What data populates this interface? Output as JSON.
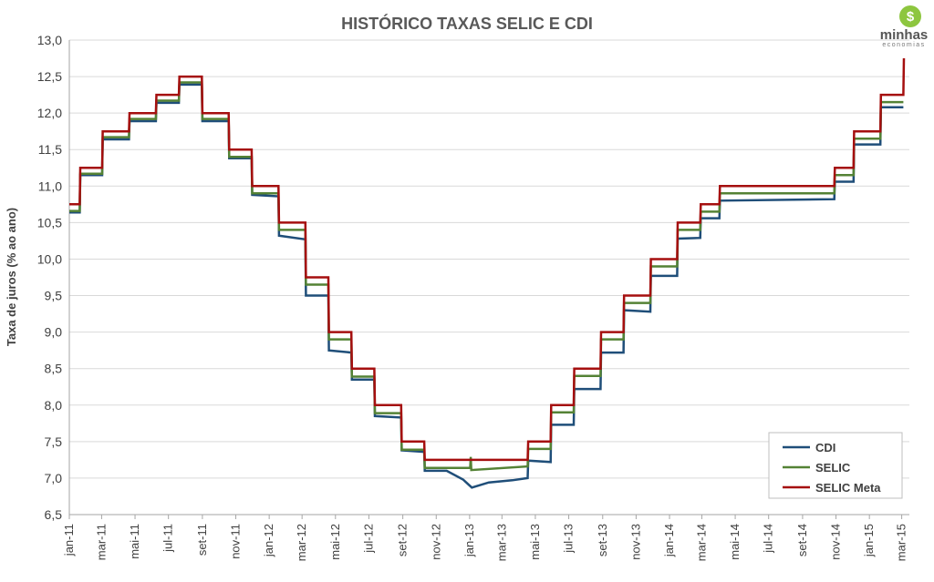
{
  "brand": {
    "symbol": "$",
    "name": "minhas",
    "tagline": "economias"
  },
  "colors": {
    "cdi": "#1f4e79",
    "selic": "#548235",
    "selic_meta": "#a50f0f",
    "grid": "#d9d9d9"
  },
  "chart_data": {
    "type": "line",
    "title": "HISTÓRICO TAXAS SELIC E CDI",
    "xlabel": "",
    "ylabel": "Taxa de juros (% ao ano)",
    "ylim": [
      6.5,
      13.0
    ],
    "yticks": [
      "6,5",
      "7,0",
      "7,5",
      "8,0",
      "8,5",
      "9,0",
      "9,5",
      "10,0",
      "10,5",
      "11,0",
      "11,5",
      "12,0",
      "12,5",
      "13,0"
    ],
    "x_range": [
      "2011-01-01",
      "2015-03-15"
    ],
    "xticks": [
      {
        "date": "2011-01-01",
        "label": "jan-11"
      },
      {
        "date": "2011-03-01",
        "label": "mar-11"
      },
      {
        "date": "2011-05-01",
        "label": "mai-11"
      },
      {
        "date": "2011-07-01",
        "label": "jul-11"
      },
      {
        "date": "2011-09-01",
        "label": "set-11"
      },
      {
        "date": "2011-11-01",
        "label": "nov-11"
      },
      {
        "date": "2012-01-01",
        "label": "jan-12"
      },
      {
        "date": "2012-03-01",
        "label": "mar-12"
      },
      {
        "date": "2012-05-01",
        "label": "mai-12"
      },
      {
        "date": "2012-07-01",
        "label": "jul-12"
      },
      {
        "date": "2012-09-01",
        "label": "set-12"
      },
      {
        "date": "2012-11-01",
        "label": "nov-12"
      },
      {
        "date": "2013-01-01",
        "label": "jan-13"
      },
      {
        "date": "2013-03-01",
        "label": "mar-13"
      },
      {
        "date": "2013-05-01",
        "label": "mai-13"
      },
      {
        "date": "2013-07-01",
        "label": "jul-13"
      },
      {
        "date": "2013-09-01",
        "label": "set-13"
      },
      {
        "date": "2013-11-01",
        "label": "nov-13"
      },
      {
        "date": "2014-01-01",
        "label": "jan-14"
      },
      {
        "date": "2014-03-01",
        "label": "mar-14"
      },
      {
        "date": "2014-05-01",
        "label": "mai-14"
      },
      {
        "date": "2014-07-01",
        "label": "jul-14"
      },
      {
        "date": "2014-09-01",
        "label": "set-14"
      },
      {
        "date": "2014-11-01",
        "label": "nov-14"
      },
      {
        "date": "2015-01-01",
        "label": "jan-15"
      },
      {
        "date": "2015-03-01",
        "label": "mar-15"
      }
    ],
    "grid": true,
    "legend_position": "bottom-right",
    "series": [
      {
        "name": "CDI",
        "color": "#1f4e79",
        "points": [
          [
            "2011-01-01",
            10.64
          ],
          [
            "2011-01-20",
            10.64
          ],
          [
            "2011-01-21",
            11.15
          ],
          [
            "2011-03-02",
            11.15
          ],
          [
            "2011-03-03",
            11.64
          ],
          [
            "2011-04-20",
            11.64
          ],
          [
            "2011-04-21",
            11.89
          ],
          [
            "2011-06-08",
            11.89
          ],
          [
            "2011-06-09",
            12.14
          ],
          [
            "2011-07-20",
            12.14
          ],
          [
            "2011-07-21",
            12.39
          ],
          [
            "2011-08-31",
            12.39
          ],
          [
            "2011-09-01",
            11.89
          ],
          [
            "2011-10-19",
            11.89
          ],
          [
            "2011-10-20",
            11.38
          ],
          [
            "2011-11-30",
            11.38
          ],
          [
            "2011-12-01",
            10.88
          ],
          [
            "2012-01-18",
            10.86
          ],
          [
            "2012-01-19",
            10.32
          ],
          [
            "2012-03-07",
            10.27
          ],
          [
            "2012-03-08",
            9.5
          ],
          [
            "2012-04-18",
            9.5
          ],
          [
            "2012-04-19",
            8.75
          ],
          [
            "2012-05-30",
            8.72
          ],
          [
            "2012-05-31",
            8.35
          ],
          [
            "2012-07-11",
            8.35
          ],
          [
            "2012-07-12",
            7.85
          ],
          [
            "2012-08-29",
            7.83
          ],
          [
            "2012-08-30",
            7.38
          ],
          [
            "2012-10-10",
            7.36
          ],
          [
            "2012-10-11",
            7.1
          ],
          [
            "2012-11-20",
            7.1
          ],
          [
            "2012-12-20",
            6.98
          ],
          [
            "2013-01-05",
            6.87
          ],
          [
            "2013-02-05",
            6.94
          ],
          [
            "2013-03-20",
            6.97
          ],
          [
            "2013-04-17",
            7.0
          ],
          [
            "2013-04-18",
            7.24
          ],
          [
            "2013-05-29",
            7.22
          ],
          [
            "2013-05-30",
            7.73
          ],
          [
            "2013-07-10",
            7.73
          ],
          [
            "2013-07-11",
            8.22
          ],
          [
            "2013-08-28",
            8.22
          ],
          [
            "2013-08-29",
            8.72
          ],
          [
            "2013-10-09",
            8.72
          ],
          [
            "2013-10-10",
            9.3
          ],
          [
            "2013-11-27",
            9.28
          ],
          [
            "2013-11-28",
            9.77
          ],
          [
            "2014-01-15",
            9.77
          ],
          [
            "2014-01-16",
            10.28
          ],
          [
            "2014-02-26",
            10.29
          ],
          [
            "2014-02-27",
            10.56
          ],
          [
            "2014-04-02",
            10.56
          ],
          [
            "2014-04-03",
            10.8
          ],
          [
            "2014-10-29",
            10.82
          ],
          [
            "2014-10-30",
            11.06
          ],
          [
            "2014-12-03",
            11.06
          ],
          [
            "2014-12-04",
            11.57
          ],
          [
            "2015-01-21",
            11.57
          ],
          [
            "2015-01-22",
            12.08
          ],
          [
            "2015-03-04",
            12.08
          ]
        ]
      },
      {
        "name": "SELIC",
        "color": "#548235",
        "points": [
          [
            "2011-01-01",
            10.66
          ],
          [
            "2011-01-20",
            10.66
          ],
          [
            "2011-01-21",
            11.17
          ],
          [
            "2011-03-02",
            11.17
          ],
          [
            "2011-03-03",
            11.67
          ],
          [
            "2011-04-20",
            11.67
          ],
          [
            "2011-04-21",
            11.92
          ],
          [
            "2011-06-08",
            11.92
          ],
          [
            "2011-06-09",
            12.17
          ],
          [
            "2011-07-20",
            12.17
          ],
          [
            "2011-07-21",
            12.42
          ],
          [
            "2011-08-31",
            12.42
          ],
          [
            "2011-09-01",
            11.92
          ],
          [
            "2011-10-19",
            11.92
          ],
          [
            "2011-10-20",
            11.4
          ],
          [
            "2011-11-30",
            11.4
          ],
          [
            "2011-12-01",
            10.9
          ],
          [
            "2012-01-18",
            10.9
          ],
          [
            "2012-01-19",
            10.4
          ],
          [
            "2012-03-07",
            10.4
          ],
          [
            "2012-03-08",
            9.65
          ],
          [
            "2012-04-18",
            9.65
          ],
          [
            "2012-04-19",
            8.9
          ],
          [
            "2012-05-30",
            8.9
          ],
          [
            "2012-05-31",
            8.39
          ],
          [
            "2012-07-11",
            8.39
          ],
          [
            "2012-07-12",
            7.89
          ],
          [
            "2012-08-29",
            7.89
          ],
          [
            "2012-08-30",
            7.39
          ],
          [
            "2012-10-10",
            7.39
          ],
          [
            "2012-10-11",
            7.14
          ],
          [
            "2013-01-02",
            7.14
          ],
          [
            "2013-01-03",
            7.29
          ],
          [
            "2013-01-04",
            7.11
          ],
          [
            "2013-04-17",
            7.16
          ],
          [
            "2013-04-18",
            7.4
          ],
          [
            "2013-05-29",
            7.4
          ],
          [
            "2013-05-30",
            7.9
          ],
          [
            "2013-07-10",
            7.9
          ],
          [
            "2013-07-11",
            8.4
          ],
          [
            "2013-08-28",
            8.4
          ],
          [
            "2013-08-29",
            8.9
          ],
          [
            "2013-10-09",
            8.9
          ],
          [
            "2013-10-10",
            9.4
          ],
          [
            "2013-11-27",
            9.4
          ],
          [
            "2013-11-28",
            9.9
          ],
          [
            "2014-01-15",
            9.9
          ],
          [
            "2014-01-16",
            10.4
          ],
          [
            "2014-02-26",
            10.4
          ],
          [
            "2014-02-27",
            10.65
          ],
          [
            "2014-04-02",
            10.65
          ],
          [
            "2014-04-03",
            10.9
          ],
          [
            "2014-10-29",
            10.9
          ],
          [
            "2014-10-30",
            11.15
          ],
          [
            "2014-12-03",
            11.15
          ],
          [
            "2014-12-04",
            11.65
          ],
          [
            "2015-01-21",
            11.65
          ],
          [
            "2015-01-22",
            12.15
          ],
          [
            "2015-03-04",
            12.15
          ]
        ]
      },
      {
        "name": "SELIC Meta",
        "color": "#a50f0f",
        "points": [
          [
            "2011-01-01",
            10.75
          ],
          [
            "2011-01-20",
            10.75
          ],
          [
            "2011-01-21",
            11.25
          ],
          [
            "2011-03-02",
            11.25
          ],
          [
            "2011-03-03",
            11.75
          ],
          [
            "2011-04-20",
            11.75
          ],
          [
            "2011-04-21",
            12.0
          ],
          [
            "2011-06-08",
            12.0
          ],
          [
            "2011-06-09",
            12.25
          ],
          [
            "2011-07-20",
            12.25
          ],
          [
            "2011-07-21",
            12.5
          ],
          [
            "2011-08-31",
            12.5
          ],
          [
            "2011-09-01",
            12.0
          ],
          [
            "2011-10-19",
            12.0
          ],
          [
            "2011-10-20",
            11.5
          ],
          [
            "2011-11-30",
            11.5
          ],
          [
            "2011-12-01",
            11.0
          ],
          [
            "2012-01-18",
            11.0
          ],
          [
            "2012-01-19",
            10.5
          ],
          [
            "2012-03-07",
            10.5
          ],
          [
            "2012-03-08",
            9.75
          ],
          [
            "2012-04-18",
            9.75
          ],
          [
            "2012-04-19",
            9.0
          ],
          [
            "2012-05-30",
            9.0
          ],
          [
            "2012-05-31",
            8.5
          ],
          [
            "2012-07-11",
            8.5
          ],
          [
            "2012-07-12",
            8.0
          ],
          [
            "2012-08-29",
            8.0
          ],
          [
            "2012-08-30",
            7.5
          ],
          [
            "2012-10-10",
            7.5
          ],
          [
            "2012-10-11",
            7.25
          ],
          [
            "2013-04-17",
            7.25
          ],
          [
            "2013-04-18",
            7.5
          ],
          [
            "2013-05-29",
            7.5
          ],
          [
            "2013-05-30",
            8.0
          ],
          [
            "2013-07-10",
            8.0
          ],
          [
            "2013-07-11",
            8.5
          ],
          [
            "2013-08-28",
            8.5
          ],
          [
            "2013-08-29",
            9.0
          ],
          [
            "2013-10-09",
            9.0
          ],
          [
            "2013-10-10",
            9.5
          ],
          [
            "2013-11-27",
            9.5
          ],
          [
            "2013-11-28",
            10.0
          ],
          [
            "2014-01-15",
            10.0
          ],
          [
            "2014-01-16",
            10.5
          ],
          [
            "2014-02-26",
            10.5
          ],
          [
            "2014-02-27",
            10.75
          ],
          [
            "2014-04-02",
            10.75
          ],
          [
            "2014-04-03",
            11.0
          ],
          [
            "2014-10-29",
            11.0
          ],
          [
            "2014-10-30",
            11.25
          ],
          [
            "2014-12-03",
            11.25
          ],
          [
            "2014-12-04",
            11.75
          ],
          [
            "2015-01-21",
            11.75
          ],
          [
            "2015-01-22",
            12.25
          ],
          [
            "2015-03-04",
            12.25
          ],
          [
            "2015-03-05",
            12.75
          ]
        ]
      }
    ]
  }
}
